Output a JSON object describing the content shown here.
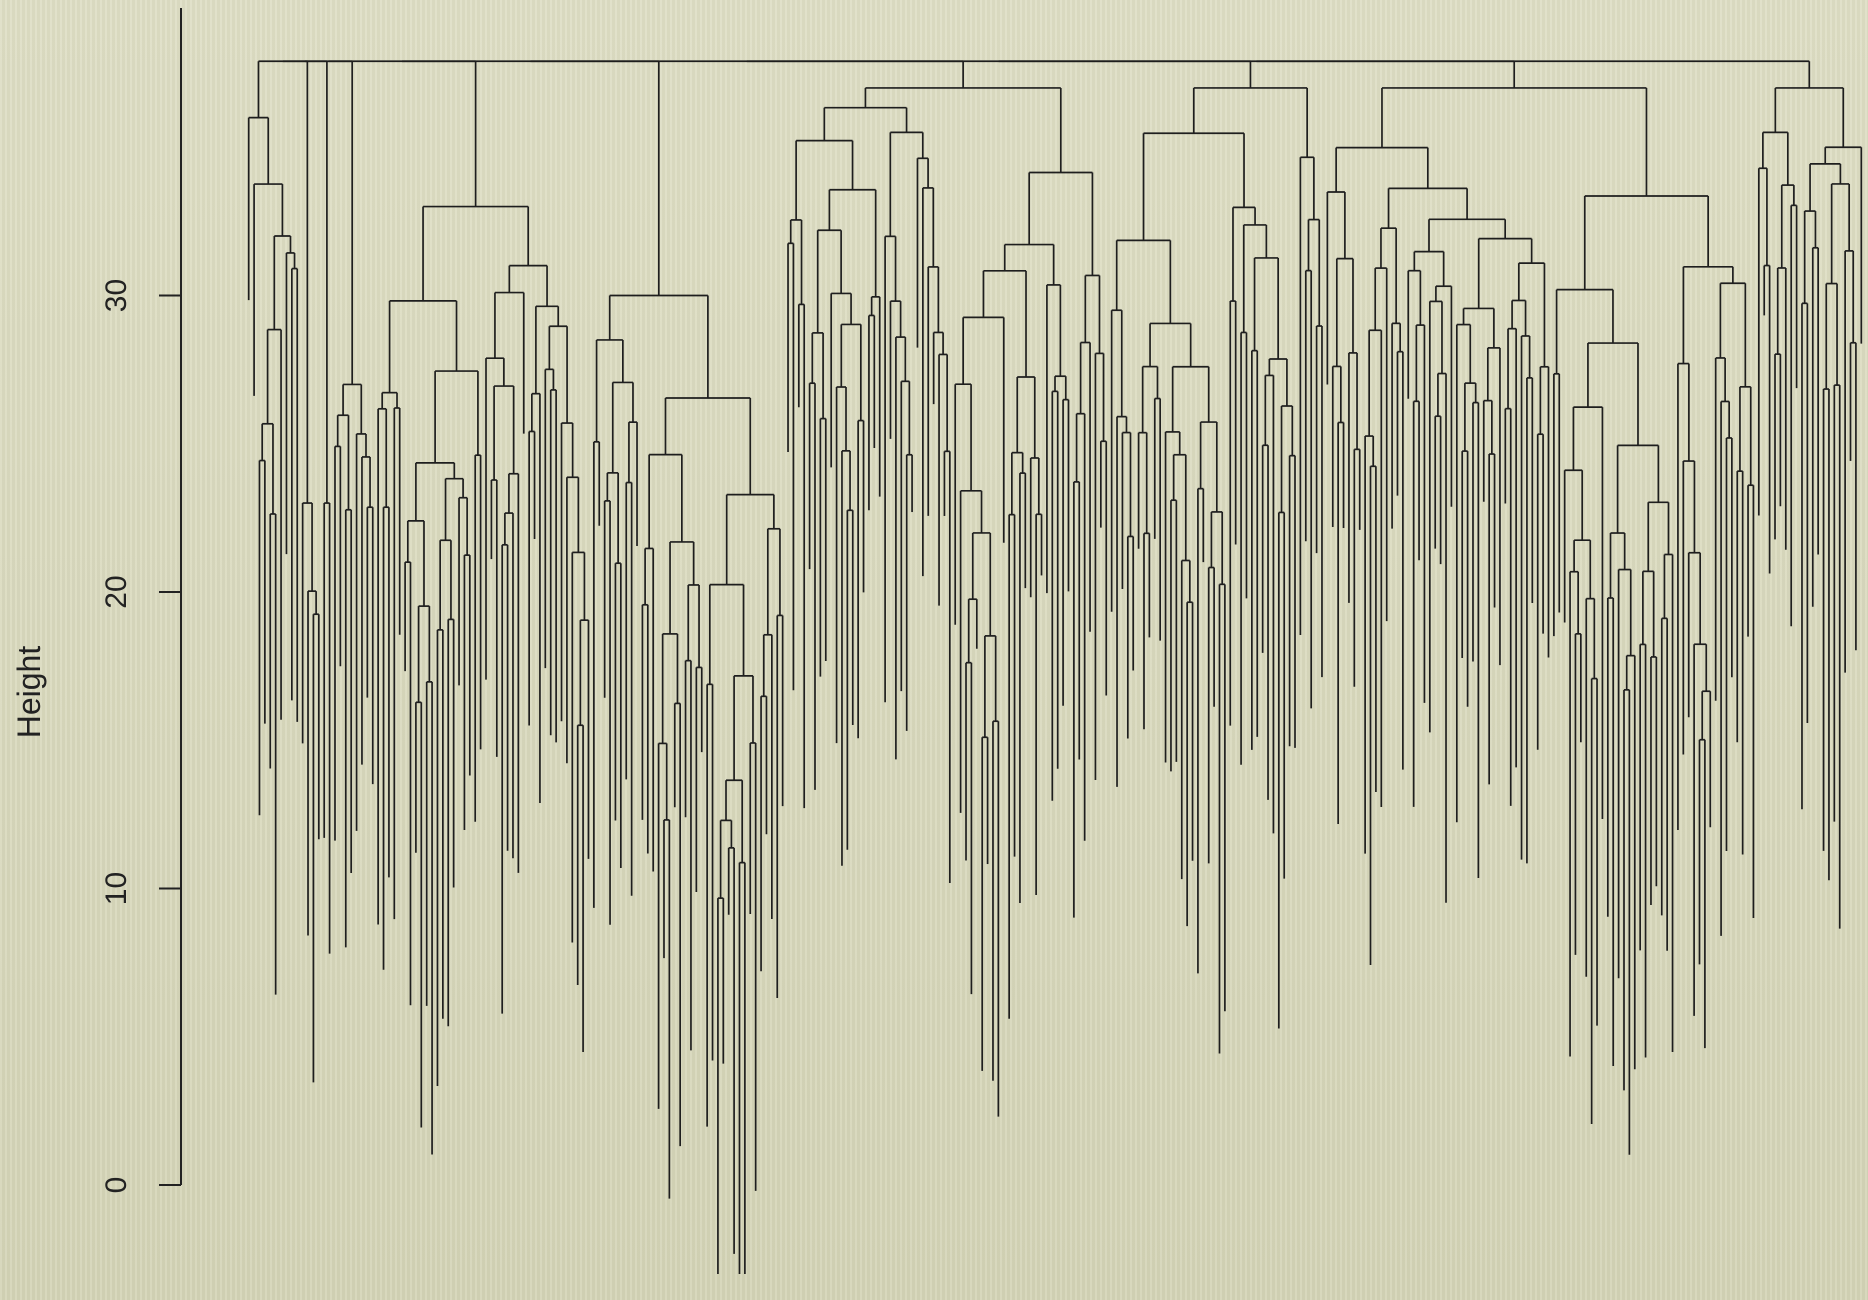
{
  "chart_data": {
    "type": "dendrogram",
    "title": "",
    "xlabel": "",
    "ylabel": "Height",
    "ylim": [
      -4,
      38
    ],
    "yticks": [
      0,
      10,
      20,
      30
    ],
    "ytick_labels": [
      "0",
      "10",
      "20",
      "30"
    ],
    "root_height": 37.9,
    "top_level_merge_heights": [
      37.9,
      36.9,
      35.9,
      34.9
    ],
    "note_leaves": "several hundred leaves, leaf heights ranging about -3 to 33"
  }
}
